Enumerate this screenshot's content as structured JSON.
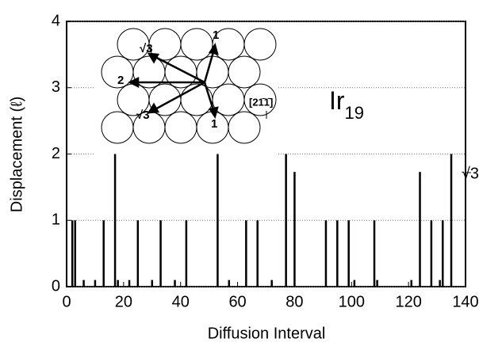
{
  "chart_data": {
    "type": "bar",
    "xlabel": "Diffusion Interval",
    "ylabel": "Displacement (ℓ)",
    "annotation": "Ir",
    "annotation_sub": "19",
    "right_label": "√3",
    "inset_labels": [
      "√3",
      "1",
      "2",
      "√3",
      "1",
      "[21̄1̄]"
    ],
    "x": [
      2,
      3,
      6,
      10,
      13,
      17,
      18,
      22,
      25,
      30,
      33,
      38,
      42,
      53,
      57,
      63,
      67,
      72,
      77,
      80,
      91,
      95,
      99,
      101,
      108,
      109,
      121,
      124,
      128,
      131,
      132,
      135
    ],
    "values": [
      1,
      1,
      0.1,
      0.1,
      1,
      2,
      0.1,
      0.1,
      1,
      0.1,
      1,
      0.1,
      1,
      2,
      0.1,
      1,
      1,
      0.1,
      2,
      1.73,
      1,
      1,
      1,
      0.1,
      1,
      0.1,
      0.1,
      1.73,
      1,
      0.1,
      1,
      2
    ],
    "color": "#000000",
    "xlim": [
      0,
      140
    ],
    "xticks": [
      0,
      20,
      40,
      60,
      80,
      100,
      120,
      140
    ],
    "ylim": [
      0,
      4
    ],
    "yticks": [
      0,
      1,
      2,
      3,
      4
    ],
    "grid": true
  }
}
